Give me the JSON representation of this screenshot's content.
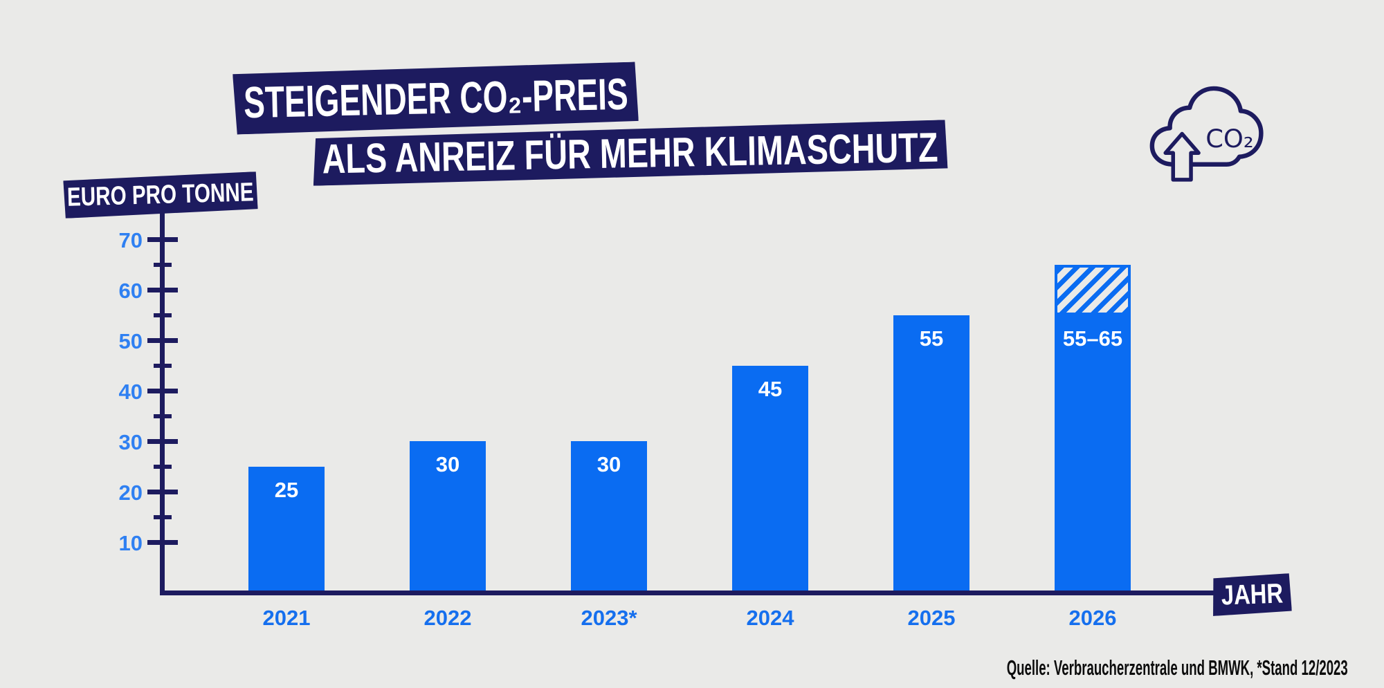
{
  "title": {
    "line1": "STEIGENDER CO₂-PREIS",
    "line2": "ALS ANREIZ FÜR MEHR KLIMASCHUTZ"
  },
  "y_axis_label": "EURO PRO TONNE",
  "x_axis_label": "JAHR",
  "co2_icon": {
    "label": "CO₂"
  },
  "source": "Quelle: Verbraucherzentrale und BMWK, *Stand 12/2023",
  "colors": {
    "background": "#eaeae8",
    "navy": "#1d1b5f",
    "bar_blue": "#0a6cf2",
    "year_label_blue": "#156fee",
    "tick_label_blue": "#2f80f2",
    "source_text": "#0c0c0c",
    "bar_value_text": "#ffffff"
  },
  "chart_data": {
    "type": "bar",
    "title": "Steigender CO₂-Preis als Anreiz für mehr Klimaschutz",
    "xlabel": "Jahr",
    "ylabel": "Euro pro Tonne",
    "ylim": [
      0,
      75
    ],
    "grid": false,
    "legend": "none",
    "y_axis": {
      "major_ticks": [
        10,
        20,
        30,
        40,
        50,
        60,
        70
      ],
      "minor_ticks": [
        15,
        25,
        35,
        45,
        55,
        65
      ]
    },
    "categories": [
      "2021",
      "2022",
      "2023*",
      "2024",
      "2025",
      "2026"
    ],
    "values": [
      25,
      30,
      30,
      45,
      55,
      55
    ],
    "bars": [
      {
        "year": "2021",
        "value": 25,
        "label": "25"
      },
      {
        "year": "2022",
        "value": 30,
        "label": "30"
      },
      {
        "year": "2023*",
        "value": 30,
        "label": "30"
      },
      {
        "year": "2024",
        "value": 45,
        "label": "45"
      },
      {
        "year": "2025",
        "value": 55,
        "label": "55"
      },
      {
        "year": "2026",
        "value": 55,
        "range_max": 65,
        "label": "55–65",
        "note": "hatched range section 55–65"
      }
    ]
  }
}
